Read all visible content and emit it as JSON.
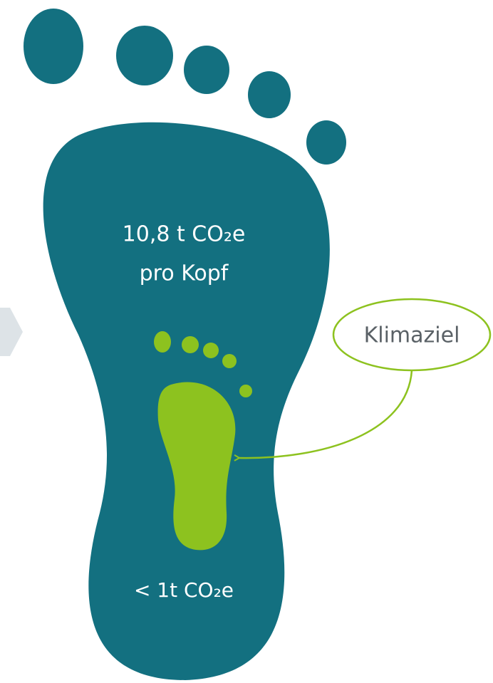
{
  "footprint": {
    "label_lines": [
      "10,8 t CO₂e",
      "pro Kopf"
    ]
  },
  "target": {
    "label": "Klimaziel",
    "value_label": "< 1t CO₂e"
  }
}
